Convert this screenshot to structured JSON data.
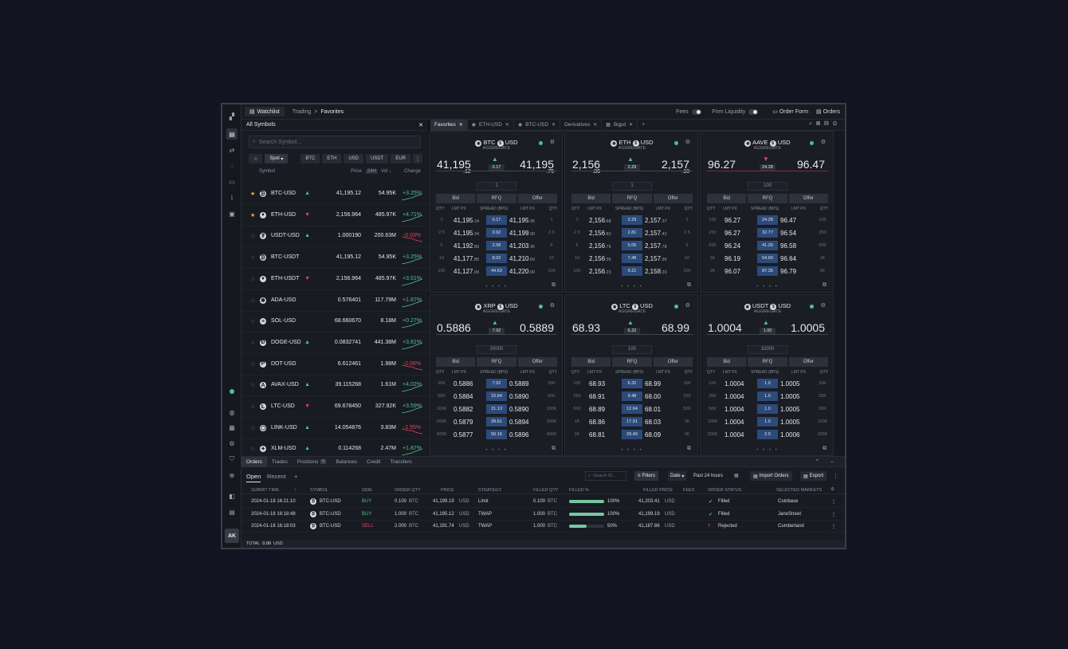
{
  "topbar": {
    "watchlist": "Watchlist",
    "crumb1": "Trading",
    "crumb_sep": ">",
    "crumb2": "Favorites",
    "fees": "Fees",
    "firm_liquidity": "Firm Liquidity",
    "order_form": "Order Form",
    "orders": "Orders"
  },
  "watchlist": {
    "title": "All Symbols",
    "search_placeholder": "Search Symbol...",
    "market": "Spot",
    "chips": [
      "BTC",
      "ETH",
      "USD",
      "USDT",
      "EUR"
    ],
    "col_symbol": "Symbol",
    "col_price": "Price",
    "col_24h": "24H",
    "col_vol": "Vol ↓",
    "col_change": "Change",
    "rows": [
      {
        "fav": true,
        "sym": "BTC-USD",
        "coin": "₿",
        "price": "41,195.12",
        "dir": "up",
        "vol": "54.95K",
        "chg": "+3.25%"
      },
      {
        "fav": true,
        "sym": "ETH-USD",
        "coin": "♦",
        "price": "2,156.964",
        "dir": "dn",
        "vol": "485.97K",
        "chg": "+4.71%"
      },
      {
        "fav": false,
        "sym": "USDT-USD",
        "coin": "₮",
        "price": "1.000190",
        "dir": "up",
        "vol": "200.63M",
        "chg": "-0.03%"
      },
      {
        "fav": false,
        "sym": "BTC-USDT",
        "coin": "₿",
        "price": "41,195.12",
        "dir": "",
        "vol": "54.95K",
        "chg": "+3.25%"
      },
      {
        "fav": false,
        "sym": "ETH-USDT",
        "coin": "♦",
        "price": "2,156.964",
        "dir": "dn",
        "vol": "485.97K",
        "chg": "+3.51%"
      },
      {
        "fav": false,
        "sym": "ADA-USD",
        "coin": "✱",
        "price": "0.576401",
        "dir": "",
        "vol": "117.79M",
        "chg": "+1.87%"
      },
      {
        "fav": false,
        "sym": "SOL-USD",
        "coin": "≡",
        "price": "68.660670",
        "dir": "",
        "vol": "8.18M",
        "chg": "+0.27%"
      },
      {
        "fav": false,
        "sym": "DOGE-USD",
        "coin": "Ð",
        "price": "0.0832741",
        "dir": "up",
        "vol": "441.38M",
        "chg": "+3.81%"
      },
      {
        "fav": false,
        "sym": "DOT-USD",
        "coin": "P",
        "price": "6.612461",
        "dir": "",
        "vol": "1.98M",
        "chg": "-2.06%"
      },
      {
        "fav": false,
        "sym": "AVAX-USD",
        "coin": "A",
        "price": "39.115268",
        "dir": "up",
        "vol": "1.61M",
        "chg": "+4.02%"
      },
      {
        "fav": false,
        "sym": "LTC-USD",
        "coin": "Ł",
        "price": "69.678450",
        "dir": "dn",
        "vol": "327.92K",
        "chg": "+3.59%"
      },
      {
        "fav": false,
        "sym": "LINK-USD",
        "coin": "⬡",
        "price": "14.054876",
        "dir": "up",
        "vol": "3.83M",
        "chg": "-1.55%"
      },
      {
        "fav": false,
        "sym": "XLM-USD",
        "coin": "✦",
        "price": "0.114268",
        "dir": "up",
        "vol": "2.47M",
        "chg": "+1.87%"
      }
    ]
  },
  "tabs": [
    {
      "label": "Favorites",
      "active": true
    },
    {
      "label": "ETH-USD",
      "active": false
    },
    {
      "label": "BTC-USD",
      "active": false
    },
    {
      "label": "Derivatives",
      "active": false
    },
    {
      "label": "Bqpd",
      "active": false
    }
  ],
  "tiles": [
    {
      "base": "BTC",
      "quote": "USD",
      "sub": "AGGREGATE",
      "bid": "41,195",
      "bid_small": ".12",
      "offer": "41,195",
      "offer_small": ".75",
      "spread": "0.17",
      "qty": "1",
      "rows": [
        [
          "1",
          "41,195",
          ".24",
          "0.17",
          "41,195",
          ".95",
          "1"
        ],
        [
          "2.5",
          "41,195",
          ".24",
          "0.92",
          "41,199",
          ".00",
          "2.5"
        ],
        [
          "5",
          "41,192",
          ".80",
          "2.58",
          "41,203",
          ".36",
          "5"
        ],
        [
          "10",
          "41,177",
          ".85",
          "8.02",
          "41,210",
          ".69",
          "10"
        ],
        [
          "100",
          "41,127",
          ".00",
          "44.63",
          "41,220",
          ".00",
          "100"
        ]
      ]
    },
    {
      "base": "ETH",
      "quote": "USD",
      "sub": "AGGREGATE",
      "bid": "2,156",
      "bid_small": ".86",
      "offer": "2,157",
      "offer_small": ".10",
      "spread": "2.29",
      "qty": "1",
      "rows": [
        [
          "1",
          "2,156",
          ".88",
          "2.29",
          "2,157",
          ".37",
          "1"
        ],
        [
          "2.5",
          "2,156",
          ".82",
          "2.81",
          "2,157",
          ".42",
          "2.5"
        ],
        [
          "5",
          "2,156",
          ".76",
          "5.05",
          "2,157",
          ".78",
          "5"
        ],
        [
          "10",
          "2,156",
          ".36",
          "7.48",
          "2,157",
          ".96",
          "10"
        ],
        [
          "100",
          "2,156",
          ".23",
          "9.21",
          "2,158",
          ".20",
          "100"
        ]
      ]
    },
    {
      "base": "AAVE",
      "quote": "USD",
      "sub": "AGGREGATE",
      "bid": "96.27",
      "bid_small": "",
      "offer": "96.47",
      "offer_small": "",
      "spread": "24.28",
      "qty": "100",
      "rows": [
        [
          "100",
          "96.27",
          "",
          "24.28",
          "96.47",
          "",
          "100"
        ],
        [
          "250",
          "96.27",
          "",
          "32.77",
          "96.54",
          "",
          "250"
        ],
        [
          "500",
          "96.24",
          "",
          "41.26",
          "96.58",
          "",
          "500"
        ],
        [
          "1K",
          "96.19",
          "",
          "54.60",
          "96.64",
          "",
          "1K"
        ],
        [
          "2K",
          "96.07",
          "",
          "87.35",
          "96.79",
          "",
          "2K"
        ]
      ]
    },
    {
      "base": "XRP",
      "quote": "USD",
      "sub": "AGGREGATE",
      "bid": "0.5886",
      "bid_small": "",
      "offer": "0.5889",
      "offer_small": "",
      "spread": "7.92",
      "qty": "20000",
      "rows": [
        [
          "20K",
          "0.5886",
          "",
          "7.92",
          "0.5889",
          "",
          "20K"
        ],
        [
          "50K",
          "0.5884",
          "",
          "15.84",
          "0.5890",
          "",
          "50K"
        ],
        [
          "100K",
          "0.5882",
          "",
          "21.13",
          "0.5890",
          "",
          "100K"
        ],
        [
          "200K",
          "0.5879",
          "",
          "39.61",
          "0.5894",
          "",
          "200K"
        ],
        [
          "400K",
          "0.5877",
          "",
          "50.16",
          "0.5896",
          "",
          "400K"
        ]
      ]
    },
    {
      "base": "LTC",
      "quote": "USD",
      "sub": "AGGREGATE",
      "bid": "68.93",
      "bid_small": "",
      "offer": "68.99",
      "offer_small": "",
      "spread": "6.32",
      "qty": "100",
      "rows": [
        [
          "100",
          "68.93",
          "",
          "6.32",
          "68.99",
          "",
          "100"
        ],
        [
          "250",
          "68.91",
          "",
          "9.48",
          "68.00",
          "",
          "250"
        ],
        [
          "500",
          "68.89",
          "",
          "12.64",
          "68.01",
          "",
          "500"
        ],
        [
          "1K",
          "68.86",
          "",
          "17.91",
          "68.03",
          "",
          "1K"
        ],
        [
          "2K",
          "68.81",
          "",
          "29.49",
          "68.09",
          "",
          "2K"
        ]
      ]
    },
    {
      "base": "USDT",
      "quote": "USD",
      "sub": "AGGREGATE",
      "bid": "1.0004",
      "bid_small": "",
      "offer": "1.0005",
      "offer_small": "",
      "spread": "1.00",
      "qty": "10000",
      "rows": [
        [
          "10K",
          "1.0004",
          "",
          "1.0",
          "1.0005",
          "",
          "10K"
        ],
        [
          "25K",
          "1.0004",
          "",
          "1.0",
          "1.0005",
          "",
          "25K"
        ],
        [
          "50K",
          "1.0004",
          "",
          "1.0",
          "1.0005",
          "",
          "50K"
        ],
        [
          "100K",
          "1.0004",
          "",
          "1.0",
          "1.0005",
          "",
          "100K"
        ],
        [
          "200K",
          "1.0004",
          "",
          "2.0",
          "1.0006",
          "",
          "200K"
        ]
      ]
    }
  ],
  "tile_labels": {
    "bid": "Bid",
    "rfq": "RFQ",
    "offer": "Offer",
    "qty": "QTY",
    "lmt": "LMT PX",
    "spread": "SPREAD (BPS)",
    "dots": "• • • •"
  },
  "orders": {
    "tabs": [
      "Orders",
      "Trades",
      "Positions",
      "Balances",
      "Credit",
      "Transfers"
    ],
    "positions_count": "5",
    "sub_open": "Open",
    "sub_recent": "Recent",
    "sub_add": "+",
    "search_placeholder": "Search ID...",
    "filters": "Filters",
    "date": "Date",
    "range": "Past 24 hours",
    "import": "Import Orders",
    "export": "Export",
    "headers": [
      "SUBMIT TIME",
      "SYMBOL",
      "SIDE",
      "ORDER QTY",
      "PRICE",
      "STRATEGY",
      "FILLED QTY",
      "FILLED %",
      "FILLED PRICE",
      "FEES",
      "ORDER STATUS",
      "SELECTED MARKETS"
    ],
    "rows": [
      {
        "time": "2024-01-18 16:21:10",
        "sym": "BTC-USD",
        "side": "BUY",
        "qty": "0.100",
        "qty_unit": "BTC",
        "price": "41,199.19",
        "price_unit": "USD",
        "strategy": "Limit",
        "fqty": "0.100",
        "fqty_unit": "BTC",
        "pct": "100%",
        "pct_val": 1.0,
        "fprice": "41,203.41",
        "fprice_unit": "USD",
        "status": "Filled",
        "market": "Coinbase"
      },
      {
        "time": "2024-01-18 16:18:48",
        "sym": "BTC-USD",
        "side": "BUY",
        "qty": "1.000",
        "qty_unit": "BTC",
        "price": "41,195.12",
        "price_unit": "USD",
        "strategy": "TWAP",
        "fqty": "1.000",
        "fqty_unit": "BTC",
        "pct": "100%",
        "pct_val": 1.0,
        "fprice": "41,199.19",
        "fprice_unit": "USD",
        "status": "Filled",
        "market": "JaneStreet"
      },
      {
        "time": "2024-01-18 16:18:03",
        "sym": "BTC-USD",
        "side": "SELL",
        "qty": "2.000",
        "qty_unit": "BTC",
        "price": "41,191.74",
        "price_unit": "USD",
        "strategy": "TWAP",
        "fqty": "1.000",
        "fqty_unit": "BTC",
        "pct": "50%",
        "pct_val": 0.5,
        "fprice": "41,187.86",
        "fprice_unit": "USD",
        "status": "Rejected",
        "market": "Cumberland"
      }
    ],
    "total_label": "TOTAL",
    "total_value": "0.00",
    "total_unit": "USD"
  },
  "user": {
    "initials": "AK"
  },
  "colors": {
    "up": "#4fc08d",
    "down": "#e0455e",
    "accent": "#2c4a7a"
  }
}
